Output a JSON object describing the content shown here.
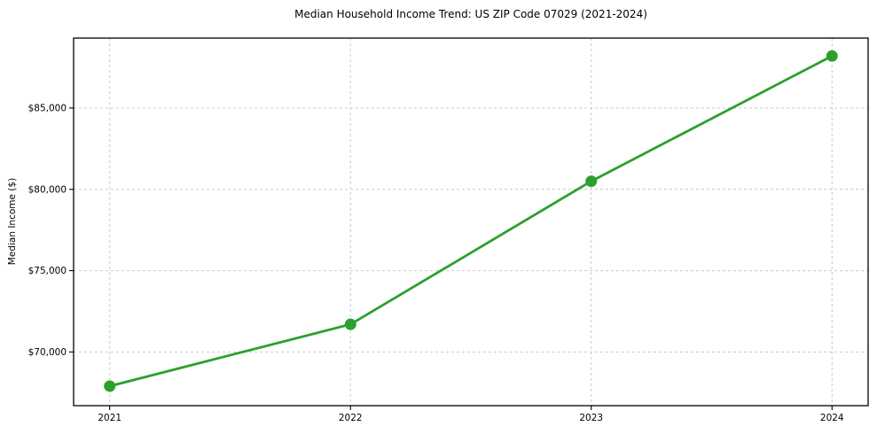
{
  "chart_data": {
    "type": "line",
    "title": "Median Household Income Trend: US ZIP Code 07029 (2021-2024)",
    "xlabel": "",
    "ylabel": "Median Income ($)",
    "x": [
      2021,
      2022,
      2023,
      2024
    ],
    "values": [
      67900,
      71700,
      80500,
      88200
    ],
    "series_name": "Median Household Income",
    "xticks": {
      "values": [
        2021,
        2022,
        2023,
        2024
      ],
      "labels": [
        "2021",
        "2022",
        "2023",
        "2024"
      ]
    },
    "yticks": {
      "values": [
        70000,
        75000,
        80000,
        85000
      ],
      "labels": [
        "$70,000",
        "$75,000",
        "$80,000",
        "$85,000"
      ]
    },
    "xlim": [
      2020.85,
      2024.15
    ],
    "ylim": [
      66700,
      89300
    ],
    "grid": true,
    "grid_style": "dashed",
    "legend_position": "none",
    "line_color": "#2ca02c",
    "marker": "circle",
    "marker_radius": 6.5,
    "grid_color": "#c9c9c9",
    "spine_color": "#000000",
    "text_color": "#000000",
    "background_color": "#ffffff"
  }
}
